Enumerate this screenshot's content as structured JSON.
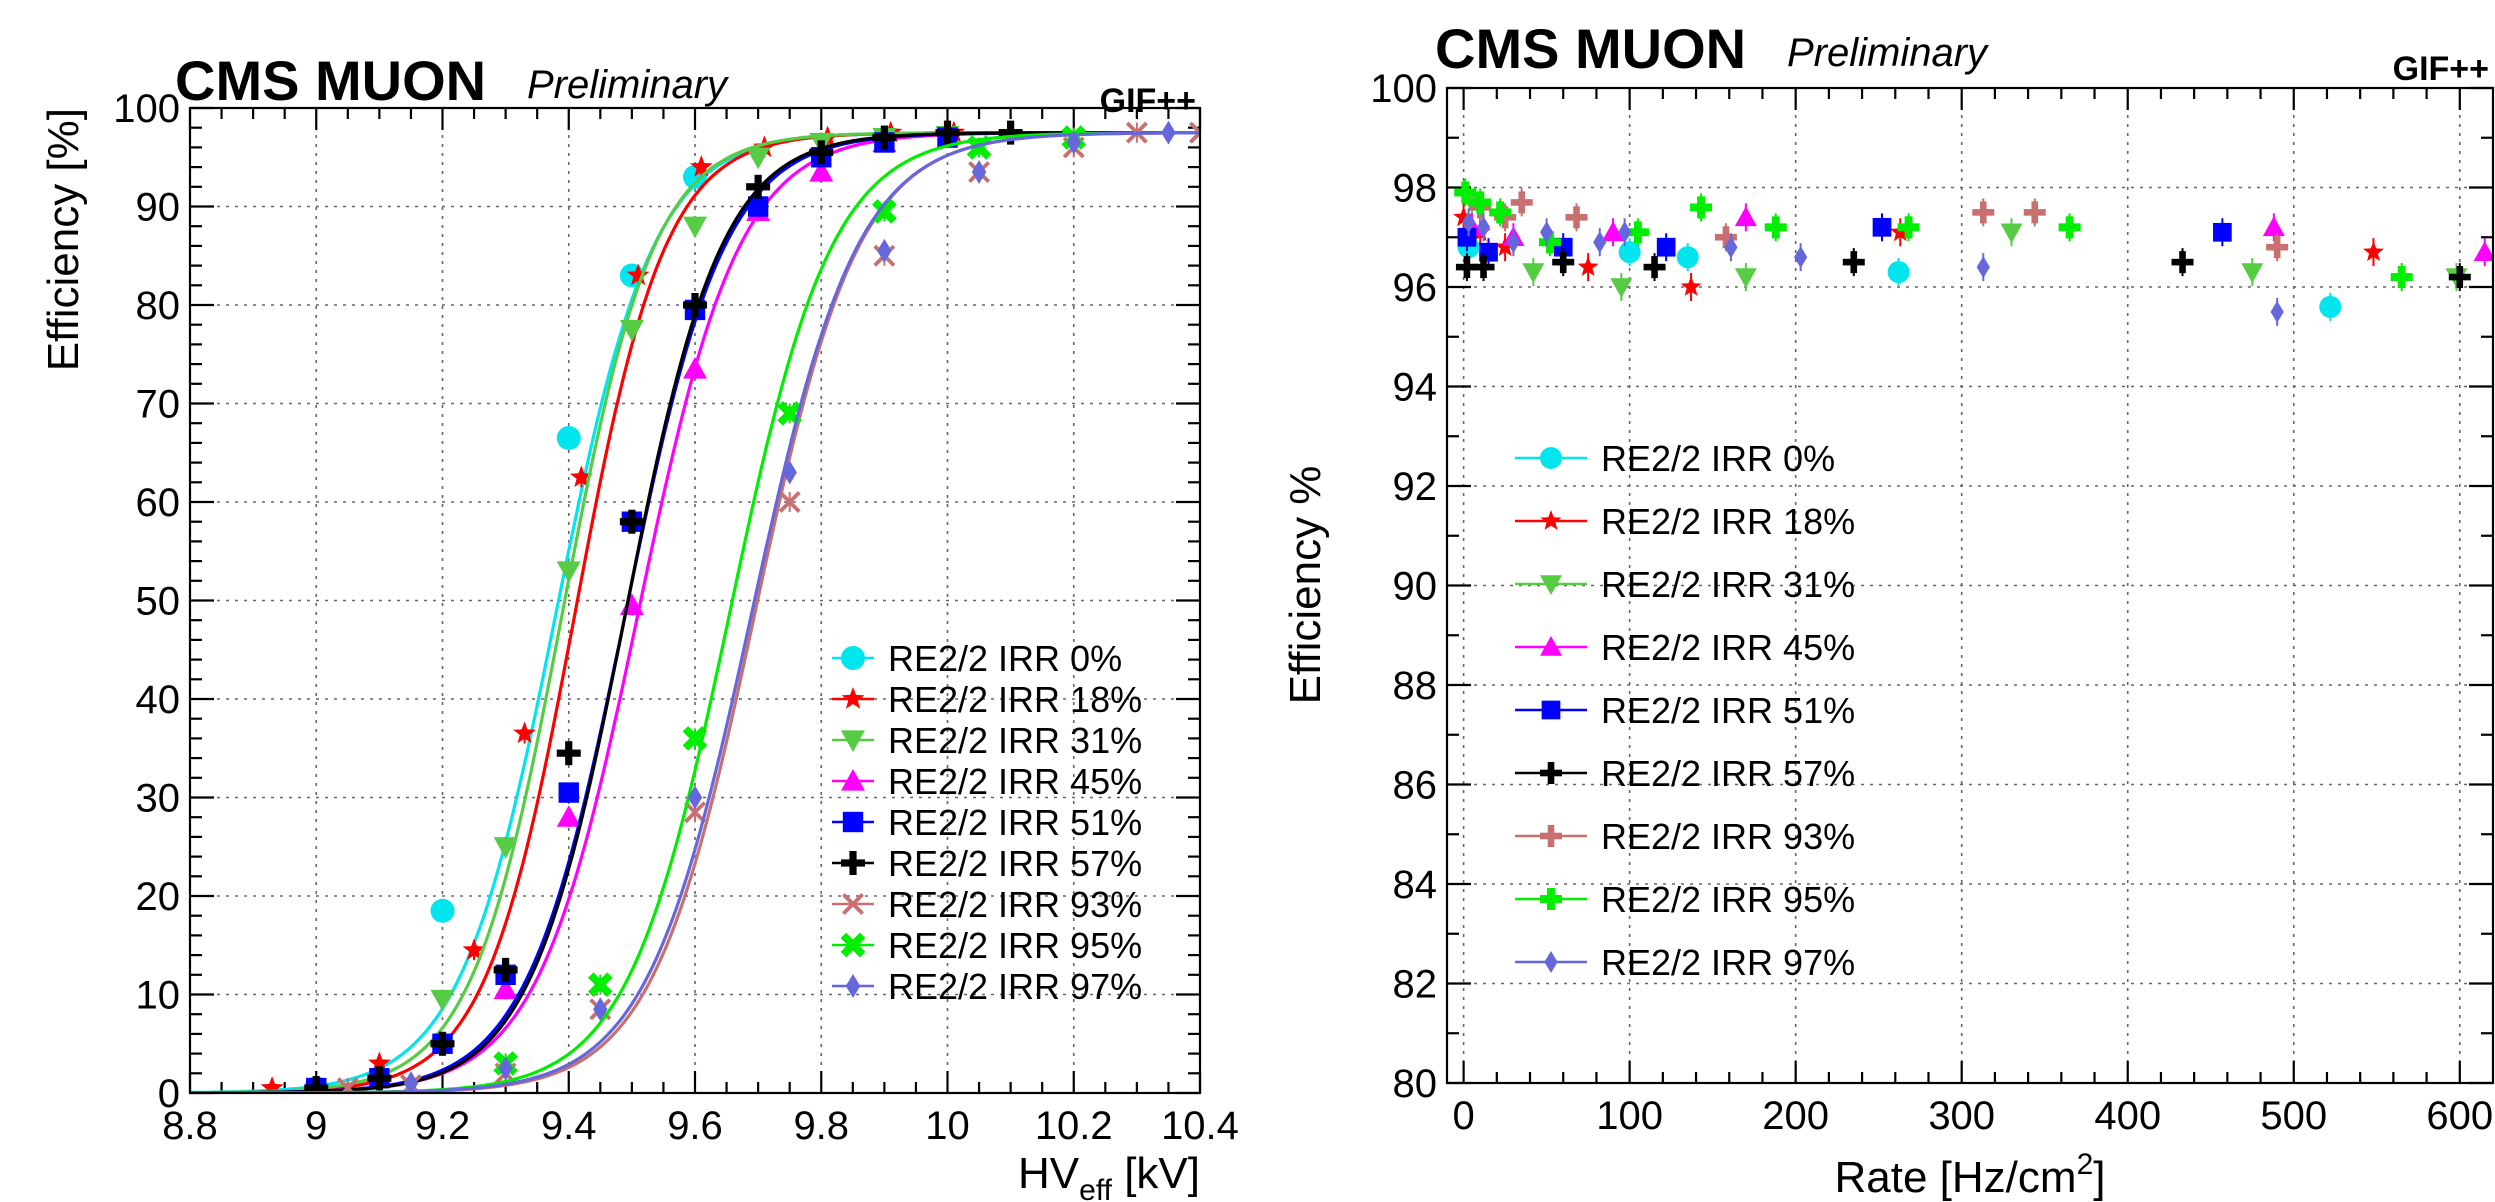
{
  "chart_data": [
    {
      "type": "line",
      "id": "left",
      "experiment": "CMS MUON",
      "status": "Preliminary",
      "facility": "GIF++",
      "xlabel": "HV",
      "xlabel_sub": "eff",
      "xlabel_unit": "[kV]",
      "ylabel": "Efficiency [%]",
      "xlim": [
        8.8,
        10.4
      ],
      "ylim": [
        0,
        100
      ],
      "xticks": [
        8.8,
        9,
        9.2,
        9.4,
        9.6,
        9.8,
        10,
        10.2,
        10.4
      ],
      "xtick_labels": [
        "8.8",
        "9",
        "9.2",
        "9.4",
        "9.6",
        "9.8",
        "10",
        "10.2",
        "10.4"
      ],
      "yticks": [
        0,
        10,
        20,
        30,
        40,
        50,
        60,
        70,
        80,
        90,
        100
      ],
      "ytick_labels": [
        "0",
        "10",
        "20",
        "30",
        "40",
        "50",
        "60",
        "70",
        "80",
        "90",
        "100"
      ],
      "grid": true,
      "legend_position": "lower-right",
      "series": [
        {
          "name": "RE2/2 IRR 0%",
          "color": "#00e5ee",
          "marker": "circle",
          "emax": 97.5,
          "hv50": 9.38,
          "slope": 13.0,
          "x": [
            9.0,
            9.2,
            9.4,
            9.5,
            9.6
          ],
          "y": [
            0.5,
            18.5,
            66.5,
            83,
            93
          ]
        },
        {
          "name": "RE2/2 IRR 18%",
          "color": "#ff0000",
          "marker": "star",
          "emax": 97.5,
          "hv50": 9.41,
          "slope": 14.0,
          "x": [
            8.93,
            9.1,
            9.25,
            9.33,
            9.42,
            9.51,
            9.61,
            9.71,
            9.81,
            9.91,
            10.01
          ],
          "y": [
            0.5,
            3,
            14.5,
            36.5,
            62.5,
            83,
            94,
            96,
            97,
            97.5,
            97.5
          ]
        },
        {
          "name": "RE2/2 IRR 31%",
          "color": "#55cc44",
          "marker": "triangle-down",
          "emax": 97.5,
          "hv50": 9.39,
          "slope": 13.8,
          "x": [
            9.2,
            9.3,
            9.4,
            9.5,
            9.6,
            9.7,
            9.8,
            9.9,
            10.0
          ],
          "y": [
            9.5,
            25,
            53,
            77.5,
            88,
            95,
            96.5,
            97,
            97.2
          ]
        },
        {
          "name": "RE2/2 IRR 45%",
          "color": "#ff00ff",
          "marker": "triangle-up",
          "emax": 97.5,
          "hv50": 9.51,
          "slope": 12.5,
          "x": [
            9.3,
            9.4,
            9.5,
            9.6,
            9.7,
            9.8,
            9.9
          ],
          "y": [
            10.5,
            28,
            49.5,
            73.5,
            89.5,
            93.5,
            96.5
          ]
        },
        {
          "name": "RE2/2 IRR 51%",
          "color": "#0000ff",
          "marker": "square",
          "emax": 97.5,
          "hv50": 9.49,
          "slope": 12.8,
          "x": [
            9.0,
            9.1,
            9.2,
            9.3,
            9.4,
            9.5,
            9.6,
            9.7,
            9.8,
            9.9,
            10.0
          ],
          "y": [
            0.5,
            1.5,
            5,
            12,
            30.5,
            58,
            79.5,
            90,
            95,
            96.5,
            97
          ]
        },
        {
          "name": "RE2/2 IRR 57%",
          "color": "#000000",
          "marker": "cross",
          "emax": 97.5,
          "hv50": 9.49,
          "slope": 13.2,
          "x": [
            9.0,
            9.1,
            9.2,
            9.3,
            9.4,
            9.5,
            9.6,
            9.7,
            9.8,
            9.9,
            10.0,
            10.1
          ],
          "y": [
            0.5,
            1.5,
            5,
            12.5,
            34.5,
            58,
            80,
            92,
            95.5,
            97,
            97.5,
            97.5
          ]
        },
        {
          "name": "RE2/2 IRR 93%",
          "color": "#c87070",
          "marker": "x",
          "emax": 97.5,
          "hv50": 9.695,
          "slope": 12.2,
          "x": [
            9.05,
            9.15,
            9.3,
            9.45,
            9.6,
            9.75,
            9.9,
            10.05,
            10.2,
            10.3,
            10.4
          ],
          "y": [
            0.5,
            0.8,
            2,
            8.5,
            28.5,
            60,
            85,
            93.5,
            96,
            97.5,
            97.5
          ]
        },
        {
          "name": "RE2/2 IRR 95%",
          "color": "#00ee00",
          "marker": "x-bold",
          "emax": 97.5,
          "hv50": 9.655,
          "slope": 12.4,
          "x": [
            9.3,
            9.45,
            9.6,
            9.75,
            9.9,
            10.05,
            10.2
          ],
          "y": [
            3,
            11,
            36,
            69,
            89.5,
            96,
            97
          ]
        },
        {
          "name": "RE2/2 IRR 97%",
          "color": "#6666dd",
          "marker": "diamond",
          "emax": 97.5,
          "hv50": 9.69,
          "slope": 12.0,
          "x": [
            9.15,
            9.3,
            9.45,
            9.6,
            9.75,
            9.9,
            10.05,
            10.2,
            10.35
          ],
          "y": [
            1,
            2.5,
            8.5,
            30,
            63,
            85.5,
            93.5,
            96.5,
            97.5
          ]
        }
      ]
    },
    {
      "type": "scatter",
      "id": "right",
      "experiment": "CMS MUON",
      "status": "Preliminary",
      "facility": "GIF++",
      "xlabel": "Rate [Hz/cm",
      "xlabel_sup": "2",
      "xlabel_close": "]",
      "ylabel": "Efficiency %",
      "xlim": [
        -10,
        620
      ],
      "ylim": [
        80,
        100
      ],
      "xticks": [
        0,
        100,
        200,
        300,
        400,
        500,
        600
      ],
      "xtick_labels": [
        "0",
        "100",
        "200",
        "300",
        "400",
        "500",
        "600"
      ],
      "yticks": [
        80,
        82,
        84,
        86,
        88,
        90,
        92,
        94,
        96,
        98,
        100
      ],
      "ytick_labels": [
        "80",
        "82",
        "84",
        "86",
        "88",
        "90",
        "92",
        "94",
        "96",
        "98",
        "100"
      ],
      "grid": true,
      "legend_position": "middle-left",
      "series": [
        {
          "name": "RE2/2 IRR 0%",
          "color": "#00e5ee",
          "marker": "circle",
          "x": [
            3,
            100,
            135,
            262,
            522
          ],
          "y": [
            96.8,
            96.7,
            96.6,
            96.3,
            95.6
          ]
        },
        {
          "name": "RE2/2 IRR 18%",
          "color": "#ff0000",
          "marker": "star",
          "x": [
            0,
            10,
            25,
            75,
            137,
            263,
            548
          ],
          "y": [
            97.4,
            97.1,
            96.8,
            96.4,
            96.0,
            97.1,
            96.7
          ]
        },
        {
          "name": "RE2/2 IRR 31%",
          "color": "#55cc44",
          "marker": "triangle-down",
          "x": [
            5,
            42,
            95,
            170,
            330,
            475,
            598
          ],
          "y": [
            97.7,
            96.3,
            96.0,
            96.2,
            97.1,
            96.3,
            96.2
          ]
        },
        {
          "name": "RE2/2 IRR 45%",
          "color": "#ff00ff",
          "marker": "triangle-up",
          "x": [
            5,
            30,
            90,
            170,
            488,
            615
          ],
          "y": [
            97.2,
            97.0,
            97.1,
            97.4,
            97.2,
            96.7
          ]
        },
        {
          "name": "RE2/2 IRR 51%",
          "color": "#0000ff",
          "marker": "square",
          "x": [
            2,
            15,
            60,
            122,
            252,
            457
          ],
          "y": [
            97.0,
            96.7,
            96.8,
            96.8,
            97.2,
            97.1
          ]
        },
        {
          "name": "RE2/2 IRR 57%",
          "color": "#000000",
          "marker": "cross",
          "x": [
            2,
            12,
            60,
            115,
            235,
            433,
            600
          ],
          "y": [
            96.4,
            96.4,
            96.5,
            96.4,
            96.5,
            96.5,
            96.2
          ]
        },
        {
          "name": "RE2/2 IRR 93%",
          "color": "#c87070",
          "marker": "plus",
          "x": [
            10,
            25,
            35,
            68,
            158,
            313,
            344,
            490
          ],
          "y": [
            97.6,
            97.4,
            97.7,
            97.4,
            97.0,
            97.5,
            97.5,
            96.8
          ]
        },
        {
          "name": "RE2/2 IRR 95%",
          "color": "#00ee00",
          "marker": "plus-bold",
          "x": [
            1,
            10,
            22,
            52,
            105,
            143,
            188,
            268,
            365,
            565
          ],
          "y": [
            97.9,
            97.7,
            97.5,
            96.9,
            97.1,
            97.6,
            97.2,
            97.2,
            97.2,
            96.2
          ]
        },
        {
          "name": "RE2/2 IRR 97%",
          "color": "#6666dd",
          "marker": "diamond",
          "x": [
            3,
            12,
            30,
            50,
            82,
            97,
            161,
            203,
            313,
            490
          ],
          "y": [
            97.3,
            97.2,
            96.9,
            97.1,
            96.9,
            97.1,
            96.8,
            96.6,
            96.4,
            95.5
          ]
        }
      ]
    }
  ]
}
